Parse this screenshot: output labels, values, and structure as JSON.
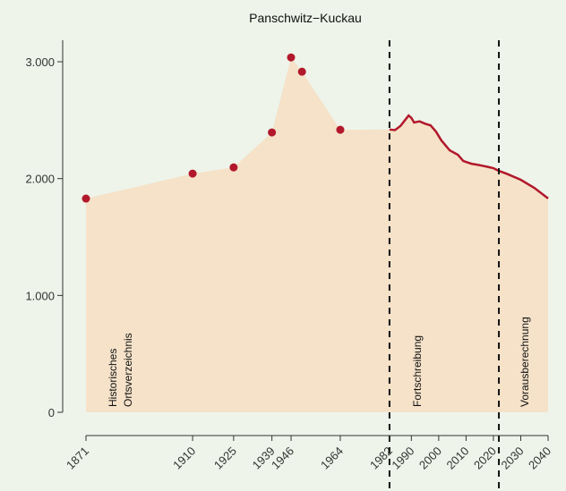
{
  "chart_data": {
    "type": "area",
    "title": "Panschwitz−Kuckau",
    "fill": "#f5e2c9",
    "color": "#b2182b",
    "series": [
      {
        "x": [
          1871,
          1910,
          1925,
          1939,
          1946,
          1950,
          1964
        ],
        "values": [
          1829,
          2043,
          2096,
          2395,
          3037,
          2915,
          2418
        ],
        "style": "points"
      },
      {
        "x": [
          1982,
          1984,
          1986,
          1988,
          1989,
          1990,
          1991,
          1993,
          1995,
          1997,
          1999,
          2001,
          2004,
          2007,
          2009,
          2012,
          2014,
          2016,
          2018,
          2020,
          2022
        ],
        "values": [
          2420,
          2415,
          2450,
          2510,
          2540,
          2520,
          2480,
          2490,
          2470,
          2456,
          2402,
          2326,
          2242,
          2204,
          2150,
          2127,
          2119,
          2110,
          2100,
          2089,
          2066
        ],
        "style": "line"
      },
      {
        "x": [
          2022,
          2025,
          2030,
          2035,
          2040
        ],
        "values": [
          2066,
          2040,
          1990,
          1920,
          1830
        ],
        "style": "line"
      }
    ],
    "vlines": [
      1982,
      2022
    ],
    "annotations": [
      [
        "Historisches",
        "Ortsverzeichnis"
      ],
      [
        "Fortschreibung"
      ],
      [
        "Vorausberechnung"
      ]
    ],
    "xlim": [
      1871,
      2040
    ],
    "xticks": [
      1871,
      1910,
      1925,
      1939,
      1946,
      1964,
      1982,
      1990,
      2000,
      2010,
      2020,
      2030,
      2040
    ],
    "ylim": [
      0,
      3184
    ],
    "yticks": [
      0,
      {
        "value": 1000,
        "label": "1.000"
      },
      {
        "value": 2000,
        "label": "2.000"
      },
      {
        "value": 3000,
        "label": "3.000"
      }
    ]
  }
}
